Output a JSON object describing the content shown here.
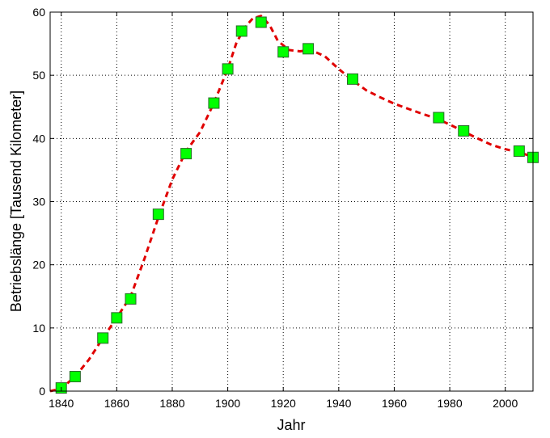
{
  "chart_data": {
    "type": "line",
    "title": "",
    "xlabel": "Jahr",
    "ylabel": "Betriebslänge [Tausend Kilometer]",
    "xlim": [
      1836,
      2010
    ],
    "ylim": [
      0,
      60
    ],
    "xticks": [
      1840,
      1860,
      1880,
      1900,
      1920,
      1940,
      1960,
      1980,
      2000
    ],
    "yticks": [
      0,
      10,
      20,
      30,
      40,
      50,
      60
    ],
    "grid": true,
    "legend": "none",
    "series": [
      {
        "style": "markers",
        "marker": "square",
        "color": "#00ff00",
        "edge_color": "#2a6a2a",
        "x": [
          1840,
          1845,
          1855,
          1860,
          1865,
          1875,
          1885,
          1895,
          1900,
          1905,
          1912,
          1920,
          1929,
          1945,
          1976,
          1985,
          2005,
          2010
        ],
        "y": [
          0.5,
          2.3,
          8.4,
          11.6,
          14.6,
          28.0,
          37.6,
          45.6,
          51.0,
          57.0,
          58.4,
          53.7,
          54.2,
          49.4,
          43.3,
          41.2,
          38.0,
          37.0
        ]
      },
      {
        "style": "dashed-line",
        "color": "#e00000",
        "x": [
          1836,
          1840,
          1845,
          1850,
          1855,
          1860,
          1865,
          1870,
          1875,
          1880,
          1885,
          1890,
          1895,
          1900,
          1903,
          1906,
          1909,
          1912,
          1915,
          1918,
          1922,
          1926,
          1930,
          1935,
          1940,
          1945,
          1950,
          1955,
          1960,
          1965,
          1970,
          1975,
          1980,
          1985,
          1990,
          1995,
          2000,
          2005,
          2010
        ],
        "y": [
          0,
          0.4,
          2.3,
          5.0,
          8.4,
          11.6,
          15.0,
          21.0,
          27.5,
          33.5,
          38.0,
          41.0,
          45.6,
          51.0,
          55.0,
          57.5,
          59.0,
          59.4,
          58.0,
          55.5,
          54.0,
          53.8,
          54.0,
          53.0,
          51.0,
          49.2,
          47.6,
          46.5,
          45.5,
          44.7,
          43.9,
          43.2,
          42.2,
          41.1,
          40.0,
          39.0,
          38.3,
          37.8,
          37.1
        ]
      }
    ]
  }
}
